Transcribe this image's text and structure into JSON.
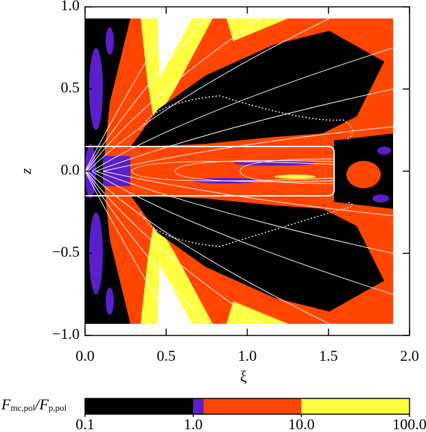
{
  "chart_data": {
    "type": "contour",
    "x_label": "ξ",
    "y_label": "z",
    "xlim": [
      0,
      2
    ],
    "ylim": [
      -1,
      1
    ],
    "xticks": [
      {
        "value": 0,
        "label": "0.0"
      },
      {
        "value": 0.5,
        "label": "0.5"
      },
      {
        "value": 1,
        "label": "1.0"
      },
      {
        "value": 1.5,
        "label": "1.5"
      },
      {
        "value": 2,
        "label": "2.0"
      }
    ],
    "yticks": [
      {
        "value": -1,
        "label": "−1.0"
      },
      {
        "value": -0.5,
        "label": "−0.5"
      },
      {
        "value": 0,
        "label": "0.0"
      },
      {
        "value": 0.5,
        "label": "0.5"
      },
      {
        "value": 1,
        "label": "1.0"
      }
    ],
    "colorbar": {
      "label_parts": [
        "F",
        "mc,pol",
        "/F",
        "p,pol"
      ],
      "log_scale": true,
      "lim": [
        0.1,
        100
      ],
      "ticks": [
        {
          "value": 0.1,
          "label": "0.1"
        },
        {
          "value": 1,
          "label": "1.0"
        },
        {
          "value": 10,
          "label": "10.0"
        },
        {
          "value": 100,
          "label": "100.0"
        }
      ],
      "levels": [
        0.1,
        1,
        1.25,
        10,
        100
      ],
      "colors": [
        "#000000",
        "#5a1fc8",
        "#ff4500",
        "#ffff40"
      ]
    }
  }
}
